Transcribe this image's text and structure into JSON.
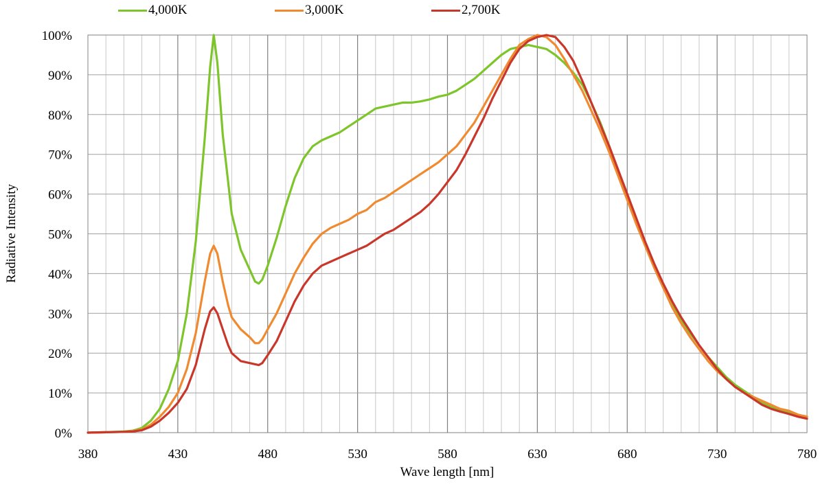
{
  "chart_data": {
    "type": "line",
    "xlabel": "Wave length [nm]",
    "ylabel": "Radiative Intensity",
    "xlim": [
      380,
      780
    ],
    "ylim": [
      0,
      100
    ],
    "x_ticks": [
      380,
      430,
      480,
      530,
      580,
      630,
      680,
      730,
      780
    ],
    "x_tick_labels": [
      "380",
      "430",
      "480",
      "530",
      "580",
      "630",
      "680",
      "730",
      "780"
    ],
    "y_ticks": [
      0,
      10,
      20,
      30,
      40,
      50,
      60,
      70,
      80,
      90,
      100
    ],
    "y_tick_labels": [
      "0%",
      "10%",
      "20%",
      "30%",
      "40%",
      "50%",
      "60%",
      "70%",
      "80%",
      "90%",
      "100%"
    ],
    "grid": true,
    "legend_position": "top",
    "series": [
      {
        "name": "4,000K",
        "color": "#7dc52a",
        "x": [
          380,
          390,
          400,
          405,
          410,
          415,
          420,
          425,
          430,
          435,
          440,
          445,
          448,
          450,
          452,
          455,
          458,
          460,
          465,
          470,
          473,
          475,
          477,
          480,
          485,
          490,
          495,
          500,
          505,
          510,
          515,
          520,
          525,
          530,
          535,
          540,
          545,
          550,
          555,
          560,
          565,
          570,
          575,
          580,
          585,
          590,
          595,
          600,
          605,
          610,
          615,
          620,
          625,
          630,
          635,
          640,
          645,
          650,
          655,
          660,
          665,
          670,
          675,
          680,
          685,
          690,
          695,
          700,
          705,
          710,
          715,
          720,
          725,
          730,
          735,
          740,
          745,
          750,
          755,
          760,
          765,
          770,
          775,
          780
        ],
        "values": [
          0,
          0.1,
          0.3,
          0.5,
          1.2,
          3,
          6,
          11,
          18,
          30,
          48,
          74,
          92,
          100,
          93,
          75,
          63,
          55,
          46,
          41,
          38,
          37.5,
          38.5,
          42,
          49,
          57,
          64,
          69,
          72,
          73.5,
          74.5,
          75.5,
          77,
          78.5,
          80,
          81.5,
          82,
          82.5,
          83,
          83,
          83.3,
          83.8,
          84.5,
          85,
          86,
          87.5,
          89,
          91,
          93,
          95,
          96.5,
          97,
          97.5,
          97,
          96.5,
          95,
          93,
          90.5,
          87.5,
          83,
          78,
          72,
          66,
          59.5,
          53,
          47,
          41.5,
          36.5,
          32,
          28,
          25,
          22,
          19,
          16.5,
          14,
          12,
          10.5,
          9,
          7.5,
          6.5,
          5.5,
          5,
          4.5,
          4
        ]
      },
      {
        "name": "3,000K",
        "color": "#f08a30",
        "x": [
          380,
          390,
          400,
          405,
          410,
          415,
          420,
          425,
          430,
          435,
          440,
          445,
          448,
          450,
          452,
          455,
          458,
          460,
          465,
          470,
          473,
          475,
          477,
          480,
          485,
          490,
          495,
          500,
          505,
          510,
          515,
          520,
          525,
          530,
          535,
          540,
          545,
          550,
          555,
          560,
          565,
          570,
          575,
          580,
          585,
          590,
          595,
          600,
          605,
          610,
          615,
          620,
          625,
          630,
          635,
          640,
          645,
          650,
          655,
          660,
          665,
          670,
          675,
          680,
          685,
          690,
          695,
          700,
          705,
          710,
          715,
          720,
          725,
          730,
          735,
          740,
          745,
          750,
          755,
          760,
          765,
          770,
          775,
          780
        ],
        "values": [
          0,
          0.1,
          0.2,
          0.4,
          0.8,
          2,
          4,
          6.5,
          10,
          16,
          25,
          38,
          45,
          47,
          45,
          38,
          32,
          29,
          26,
          24,
          22.5,
          22.5,
          23.5,
          26,
          30,
          35,
          40,
          44,
          47.5,
          50,
          51.5,
          52.5,
          53.5,
          55,
          56,
          58,
          59,
          60.5,
          62,
          63.5,
          65,
          66.5,
          68,
          70,
          72,
          75,
          78,
          82,
          86,
          90,
          94,
          97.5,
          99,
          100,
          99.5,
          97.5,
          94,
          90,
          86,
          81,
          76,
          70.5,
          64.5,
          58.5,
          52.5,
          47,
          41.5,
          36.5,
          31.5,
          27.5,
          24,
          21,
          18,
          15.5,
          13.5,
          11.5,
          10,
          9,
          8,
          7,
          6,
          5.5,
          4.5,
          4
        ]
      },
      {
        "name": "2,700K",
        "color": "#c8372a",
        "x": [
          380,
          390,
          400,
          405,
          410,
          415,
          420,
          425,
          430,
          435,
          440,
          445,
          448,
          450,
          452,
          455,
          458,
          460,
          465,
          470,
          473,
          475,
          477,
          480,
          485,
          490,
          495,
          500,
          505,
          510,
          515,
          520,
          525,
          530,
          535,
          540,
          545,
          550,
          555,
          560,
          565,
          570,
          575,
          580,
          585,
          590,
          595,
          600,
          605,
          610,
          615,
          620,
          625,
          630,
          635,
          640,
          645,
          650,
          655,
          660,
          665,
          670,
          675,
          680,
          685,
          690,
          695,
          700,
          705,
          710,
          715,
          720,
          725,
          730,
          735,
          740,
          745,
          750,
          755,
          760,
          765,
          770,
          775,
          780
        ],
        "values": [
          0,
          0.1,
          0.2,
          0.3,
          0.6,
          1.5,
          3,
          5,
          7.5,
          11,
          17,
          26,
          30.5,
          31.5,
          30,
          26,
          22,
          20,
          18,
          17.5,
          17.2,
          17,
          17.5,
          19.5,
          23,
          28,
          33,
          37,
          40,
          42,
          43,
          44,
          45,
          46,
          47,
          48.5,
          50,
          51,
          52.5,
          54,
          55.5,
          57.5,
          60,
          63,
          66,
          70,
          74.5,
          79,
          84,
          88.5,
          93,
          96.5,
          98.5,
          99.5,
          100,
          99.5,
          97,
          93.5,
          88.5,
          83,
          77.5,
          72,
          66,
          60,
          54,
          48,
          42.5,
          37.5,
          33,
          29,
          25.5,
          22,
          19,
          16,
          13.5,
          11.5,
          10,
          8.5,
          7,
          6,
          5.3,
          4.7,
          4,
          3.5
        ]
      }
    ]
  }
}
